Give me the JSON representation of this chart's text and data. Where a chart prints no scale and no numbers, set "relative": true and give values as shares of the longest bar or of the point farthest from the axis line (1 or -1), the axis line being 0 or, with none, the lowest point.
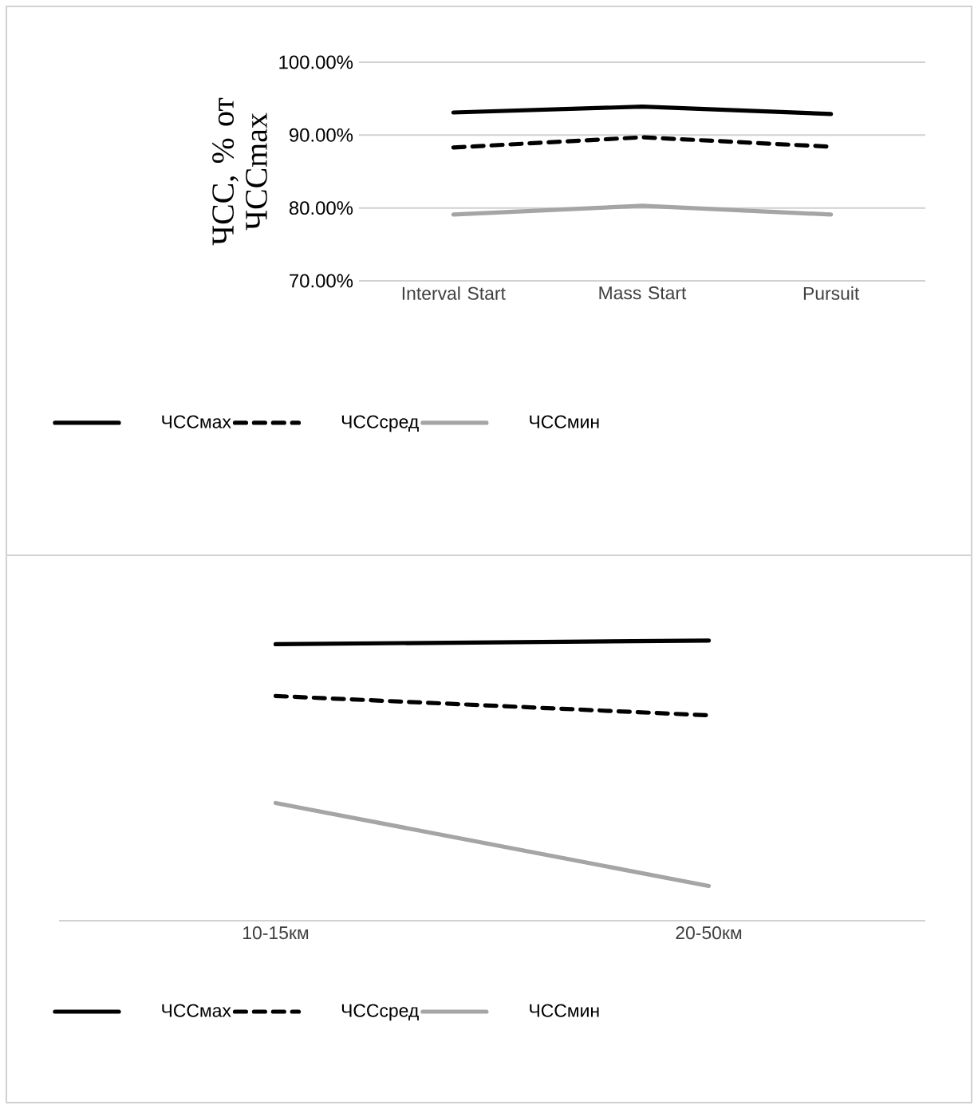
{
  "chart_data": [
    {
      "type": "line",
      "ylabel": "ЧСС, % от ЧССmax",
      "categories": [
        "Interval Start",
        "Mass Start",
        "Pursuit"
      ],
      "ylim": [
        70,
        100
      ],
      "yticks": [
        {
          "value": 70,
          "label": "70.00%"
        },
        {
          "value": 80,
          "label": "80.00%"
        },
        {
          "value": 90,
          "label": "90.00%"
        },
        {
          "value": 100,
          "label": "100.00%"
        }
      ],
      "grid": "y",
      "legend": "bottom",
      "series": [
        {
          "name": "ЧССмах",
          "color": "#000000",
          "line_style": "solid",
          "values": [
            93.1,
            93.9,
            92.9
          ]
        },
        {
          "name": "ЧССсред",
          "color": "#000000",
          "line_style": "dashed",
          "values": [
            88.3,
            89.7,
            88.4
          ]
        },
        {
          "name": "ЧССмин",
          "color": "#a5a5a5",
          "line_style": "solid",
          "values": [
            79.1,
            80.3,
            79.1
          ]
        }
      ]
    },
    {
      "type": "line",
      "relative": true,
      "categories": [
        "10-15км",
        "20-50км"
      ],
      "legend": "bottom",
      "series": [
        {
          "name": "ЧССмах",
          "color": "#000000",
          "line_style": "solid",
          "values": [
            0.987,
            1
          ]
        },
        {
          "name": "ЧССсред",
          "color": "#000000",
          "line_style": "dashed",
          "values": [
            0.802,
            0.733
          ]
        },
        {
          "name": "ЧССмин",
          "color": "#a5a5a5",
          "line_style": "solid",
          "values": [
            0.42,
            0.124
          ]
        }
      ]
    }
  ]
}
